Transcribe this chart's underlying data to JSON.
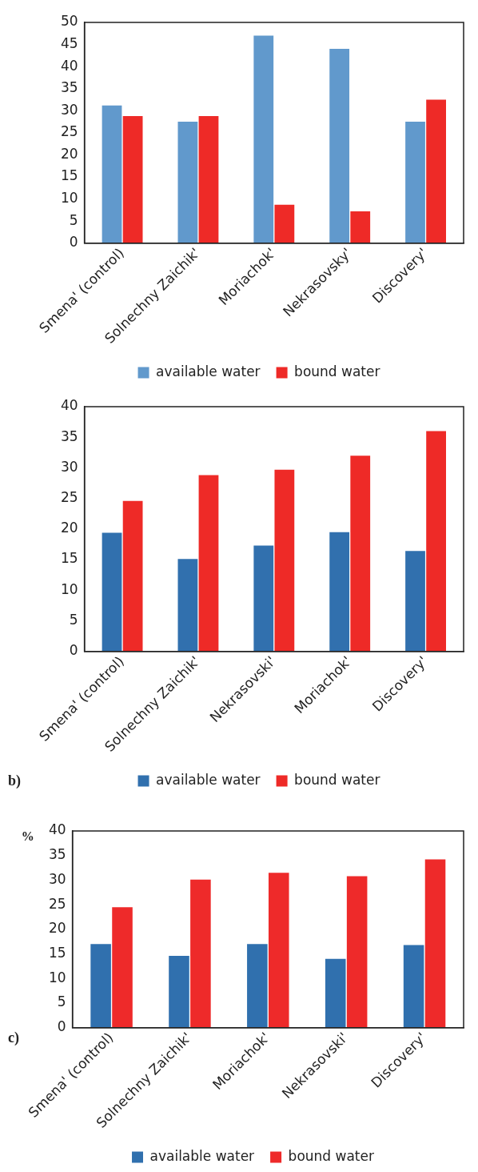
{
  "chart_data": [
    {
      "type": "bar",
      "categories": [
        "Smena' (control)",
        "Solnechny Zaichik'",
        "Moriachok'",
        "Nekrasovsky'",
        "Discovery'"
      ],
      "series": [
        {
          "name": "available water",
          "color": "#6199cc",
          "values": [
            31.2,
            27.5,
            47.0,
            44.0,
            27.5
          ]
        },
        {
          "name": "bound water",
          "color": "#ee2a27",
          "values": [
            28.8,
            28.8,
            8.7,
            7.2,
            32.5
          ]
        }
      ],
      "ylim": [
        0,
        50
      ],
      "yticks": [
        0,
        5,
        10,
        15,
        20,
        25,
        30,
        35,
        40,
        45,
        50
      ],
      "grid": false,
      "legend": "bottom"
    },
    {
      "type": "bar",
      "categories": [
        "Smena' (control)",
        "Solnechny Zaichik'",
        "Nekrasovski'",
        "Moriachok'",
        "Discovery'"
      ],
      "series": [
        {
          "name": "available water",
          "color": "#3170ae",
          "values": [
            19.4,
            15.1,
            17.3,
            19.5,
            16.4
          ]
        },
        {
          "name": "bound water",
          "color": "#ee2a27",
          "values": [
            24.6,
            28.8,
            29.7,
            32.0,
            36.0
          ]
        }
      ],
      "ylim": [
        0,
        40
      ],
      "yticks": [
        0,
        5,
        10,
        15,
        20,
        25,
        30,
        35,
        40
      ],
      "grid": false,
      "legend": "bottom",
      "annotations": [
        "b)"
      ]
    },
    {
      "type": "bar",
      "ylabel": "%",
      "categories": [
        "Smena' (control)",
        "Solnechny Zaichik'",
        "Moriachok'",
        "Nekrasovski'",
        "Discovery'"
      ],
      "series": [
        {
          "name": "available water",
          "color": "#3070ae",
          "values": [
            17.0,
            14.6,
            17.0,
            14.0,
            16.8
          ]
        },
        {
          "name": "bound water",
          "color": "#ee2a2a",
          "values": [
            24.5,
            30.1,
            31.5,
            30.8,
            34.2
          ]
        }
      ],
      "ylim": [
        0,
        40
      ],
      "yticks": [
        0,
        5,
        10,
        15,
        20,
        25,
        30,
        35,
        40
      ],
      "grid": false,
      "legend": "bottom",
      "annotations": [
        "c)"
      ]
    }
  ]
}
